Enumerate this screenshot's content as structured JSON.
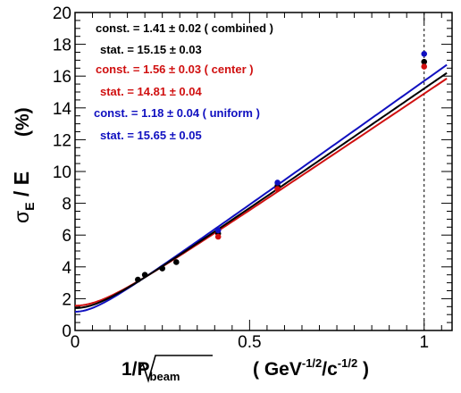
{
  "chart_data": {
    "type": "scatter",
    "xlim": [
      0,
      1.08
    ],
    "ylim": [
      0,
      20
    ],
    "x_ticks": [
      0,
      0.5,
      1
    ],
    "x_tick_labels": [
      "0",
      "0.5",
      "1"
    ],
    "y_ticks": [
      0,
      2,
      4,
      6,
      8,
      10,
      12,
      14,
      16,
      18,
      20
    ],
    "y_tick_labels": [
      "0",
      "2",
      "4",
      "6",
      "8",
      "10",
      "12",
      "14",
      "16",
      "18",
      "20"
    ],
    "xlabel": {
      "main": "1/",
      "var": "P",
      "sub": "beam",
      "units_open": "( GeV",
      "units_sup1": "-1/2",
      "units_mid": "/c",
      "units_sup2": "-1/2",
      "units_close": " )"
    },
    "ylabel": {
      "sigma": "σ",
      "sub": "E",
      "rest": " / E",
      "units": "(%)"
    },
    "reference_line_x": 1.0,
    "series": [
      {
        "name": "combined",
        "color": "#000000",
        "const": 1.41,
        "stat": 15.15,
        "points": [
          {
            "x": 0.18,
            "y": 3.2
          },
          {
            "x": 0.2,
            "y": 3.5
          },
          {
            "x": 0.25,
            "y": 3.9
          },
          {
            "x": 0.29,
            "y": 4.3
          },
          {
            "x": 0.41,
            "y": 6.1
          },
          {
            "x": 0.58,
            "y": 9.1
          },
          {
            "x": 1.0,
            "y": 16.9
          }
        ]
      },
      {
        "name": "center",
        "color": "#d01010",
        "const": 1.56,
        "stat": 14.81,
        "points": [
          {
            "x": 0.41,
            "y": 5.9
          },
          {
            "x": 0.58,
            "y": 8.9
          },
          {
            "x": 1.0,
            "y": 16.6
          }
        ]
      },
      {
        "name": "uniform",
        "color": "#1010c0",
        "const": 1.18,
        "stat": 15.65,
        "points": [
          {
            "x": 0.41,
            "y": 6.3
          },
          {
            "x": 0.58,
            "y": 9.3
          },
          {
            "x": 1.0,
            "y": 17.4
          }
        ]
      }
    ],
    "annotations": [
      {
        "text": "const. = 1.41 ± 0.02  ( combined )",
        "color": "#000000"
      },
      {
        "text": "stat. = 15.15 ± 0.03",
        "color": "#000000"
      },
      {
        "text": "const. = 1.56 ± 0.03  ( center )",
        "color": "#d01010"
      },
      {
        "text": "stat. = 14.81 ± 0.04",
        "color": "#d01010"
      },
      {
        "text": "const. = 1.18 ± 0.04  ( uniform )",
        "color": "#1010c0"
      },
      {
        "text": "stat. = 15.65 ± 0.05",
        "color": "#1010c0"
      }
    ]
  }
}
